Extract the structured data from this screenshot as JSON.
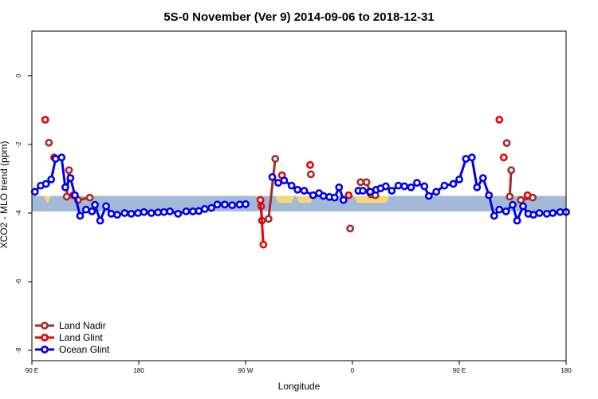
{
  "chart_data": {
    "type": "line",
    "title": "5S-0 November (Ver 9)   2014-09-06 to 2018-12-31",
    "xlabel": "Longitude",
    "ylabel": "XCO2 - MLO trend (ppm)",
    "xlim": [
      -90,
      270
    ],
    "ylim": [
      -8.3,
      1.3
    ],
    "xticks": [
      -90,
      -18,
      54,
      126,
      198,
      270
    ],
    "xtick_labels": [
      "90 E",
      "180",
      "90 W",
      "0",
      "90 E",
      "180"
    ],
    "yticks": [
      0,
      -2,
      -4,
      -6,
      -8
    ],
    "ytick_labels": [
      "0",
      "-2",
      "-4",
      "-6",
      "-8"
    ],
    "land_band": {
      "ymin": -3.95,
      "ymax": -3.5,
      "ocean_color": "#a3b9d8",
      "land_color": "#f6d679",
      "land_segments": [
        [
          -82,
          -77
        ],
        [
          -55,
          -52
        ],
        [
          74,
          87
        ],
        [
          88,
          100
        ],
        [
          127,
          151
        ],
        [
          216,
          220
        ],
        [
          230,
          233
        ]
      ]
    },
    "legend_position": "bottom-left",
    "series": [
      {
        "name": "Land Nadir",
        "color": "#a52a2a",
        "segments": [
          [
            [
              -78.5,
              -1.95
            ]
          ],
          [
            [
              -66.5,
              -3.52
            ],
            [
              -65,
              -2.75
            ]
          ],
          [
            [
              -59,
              -3.62
            ],
            [
              -51,
              -3.55
            ]
          ],
          [
            [
              64.5,
              -3.8
            ],
            [
              65,
              -4.22
            ],
            [
              69.5,
              -4.17
            ],
            [
              74,
              -2.42
            ]
          ],
          [
            [
              98,
              -2.87
            ]
          ],
          [
            [
              124.5,
              -4.45
            ]
          ],
          [
            [
              131.5,
              -3.1
            ],
            [
              135.5,
              -3.1
            ],
            [
              138.5,
              -3.45
            ],
            [
              141.5,
              -3.48
            ]
          ],
          [
            [
              230,
              -1.96
            ]
          ],
          [
            [
              232,
              -3.52
            ],
            [
              233,
              -2.75
            ]
          ],
          [
            [
              239.5,
              -3.62
            ],
            [
              247.5,
              -3.55
            ]
          ]
        ]
      },
      {
        "name": "Land Glint",
        "color": "#ee0000",
        "segments": [
          [
            [
              -81,
              -1.28
            ]
          ],
          [
            [
              -75,
              -2.38
            ]
          ],
          [
            [
              -62,
              -3.48
            ]
          ],
          [
            [
              64,
              -3.62
            ],
            [
              66,
              -4.92
            ]
          ],
          [
            [
              78.5,
              -2.9
            ]
          ],
          [
            [
              97.5,
              -2.6
            ]
          ],
          [
            [
              123.5,
              -3.48
            ]
          ],
          [
            [
              137.5,
              -3.38
            ]
          ],
          [
            [
              225,
              -1.28
            ]
          ],
          [
            [
              228,
              -2.38
            ]
          ],
          [
            [
              244,
              -3.48
            ]
          ]
        ]
      },
      {
        "name": "Ocean Glint",
        "color": "#0000ee",
        "segments": [
          [
            [
              -88,
              -3.38
            ],
            [
              -84,
              -3.2
            ],
            [
              -80.5,
              -3.15
            ],
            [
              -77,
              -3.02
            ],
            [
              -74,
              -2.42
            ],
            [
              -70,
              -2.38
            ],
            [
              -67.5,
              -3.25
            ],
            [
              -64,
              -2.98
            ],
            [
              -61,
              -3.48
            ],
            [
              -57.5,
              -4.08
            ],
            [
              -53.5,
              -3.9
            ],
            [
              -49.5,
              -3.95
            ],
            [
              -47.5,
              -3.76
            ],
            [
              -44,
              -4.22
            ],
            [
              -40,
              -3.8
            ],
            [
              -36.5,
              -4.02
            ],
            [
              -32.5,
              -4.05
            ],
            [
              -27.5,
              -4.0
            ],
            [
              -23,
              -4.02
            ],
            [
              -18.5,
              -4.0
            ],
            [
              -14.5,
              -3.97
            ],
            [
              -9.5,
              -4.0
            ],
            [
              -5,
              -3.98
            ],
            [
              -1,
              -3.97
            ],
            [
              3,
              -3.95
            ],
            [
              8.5,
              -4.02
            ],
            [
              14,
              -3.95
            ],
            [
              18.5,
              -3.95
            ],
            [
              22.5,
              -3.94
            ],
            [
              26.5,
              -3.88
            ],
            [
              31,
              -3.85
            ],
            [
              35,
              -3.75
            ],
            [
              40,
              -3.75
            ],
            [
              45,
              -3.77
            ],
            [
              50,
              -3.75
            ],
            [
              54,
              -3.74
            ]
          ],
          [
            [
              72,
              -2.95
            ],
            [
              76,
              -3.12
            ],
            [
              80,
              -3.05
            ],
            [
              85,
              -3.2
            ],
            [
              89,
              -3.32
            ],
            [
              93.5,
              -3.35
            ],
            [
              99.5,
              -3.48
            ],
            [
              103.5,
              -3.42
            ],
            [
              106.5,
              -3.5
            ],
            [
              110.5,
              -3.53
            ],
            [
              114,
              -3.55
            ],
            [
              117,
              -3.25
            ],
            [
              120,
              -3.62
            ]
          ],
          [
            [
              130,
              -3.35
            ],
            [
              133,
              -3.35
            ],
            [
              138,
              -3.38
            ],
            [
              142,
              -3.32
            ],
            [
              145,
              -3.28
            ],
            [
              148.5,
              -3.22
            ],
            [
              152.5,
              -3.35
            ],
            [
              157,
              -3.2
            ],
            [
              161,
              -3.22
            ],
            [
              165.5,
              -3.25
            ],
            [
              169.5,
              -3.12
            ],
            [
              174.5,
              -3.22
            ],
            [
              177.5,
              -3.5
            ],
            [
              182.5,
              -3.38
            ],
            [
              188,
              -3.2
            ],
            [
              194,
              -3.15
            ],
            [
              198,
              -3.02
            ],
            [
              202.5,
              -2.42
            ],
            [
              206.5,
              -2.38
            ],
            [
              210,
              -3.25
            ],
            [
              214,
              -2.98
            ],
            [
              218,
              -3.48
            ],
            [
              221.5,
              -4.08
            ],
            [
              225,
              -3.9
            ],
            [
              229.5,
              -3.95
            ],
            [
              234,
              -3.76
            ],
            [
              237,
              -4.22
            ],
            [
              241,
              -3.8
            ],
            [
              244.5,
              -4.02
            ],
            [
              248,
              -4.05
            ],
            [
              252,
              -4.0
            ],
            [
              257,
              -4.02
            ],
            [
              261,
              -4.0
            ],
            [
              266,
              -3.97
            ],
            [
              270,
              -3.97
            ]
          ]
        ]
      }
    ]
  }
}
